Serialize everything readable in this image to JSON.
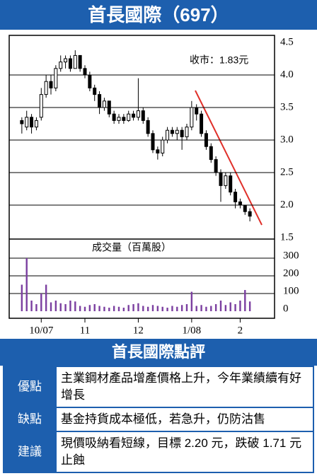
{
  "chart_data": {
    "type": "candlestick",
    "title": "首長國際（697）",
    "annotation": "收市：1.83元",
    "volume_label": "成交量（百萬股）",
    "xlim": [
      -1,
      48
    ],
    "xticks": [
      {
        "value": 4,
        "label": "10/07"
      },
      {
        "value": 13,
        "label": "11"
      },
      {
        "value": 24,
        "label": "12"
      },
      {
        "value": 35,
        "label": "1/08"
      },
      {
        "value": 45,
        "label": "2"
      }
    ],
    "ylim": [
      1.5,
      4.5
    ],
    "yticks": [
      1.5,
      {
        "value": 2,
        "label": "2.0"
      },
      2.5,
      {
        "value": 3,
        "label": "3.0"
      },
      3.5,
      {
        "value": 4,
        "label": "4.0"
      },
      4.5
    ],
    "y2lim": [
      0,
      400
    ],
    "y2ticks": [
      0,
      100,
      200,
      300
    ],
    "candle_color": "#000000",
    "volume_color": "#7b3fa0",
    "ohlc": [
      [
        3.3,
        3.35,
        3.1,
        3.25
      ],
      [
        3.2,
        3.45,
        3.15,
        3.35
      ],
      [
        3.35,
        3.4,
        3.1,
        3.2
      ],
      [
        3.2,
        3.35,
        3.15,
        3.3
      ],
      [
        3.35,
        3.8,
        3.3,
        3.7
      ],
      [
        3.7,
        4.0,
        3.65,
        3.9
      ],
      [
        3.9,
        4.0,
        3.7,
        3.8
      ],
      [
        3.8,
        4.15,
        3.75,
        4.1
      ],
      [
        4.1,
        4.3,
        4.05,
        4.2
      ],
      [
        4.2,
        4.3,
        4.1,
        4.25
      ],
      [
        4.25,
        4.3,
        4.05,
        4.1
      ],
      [
        4.1,
        4.38,
        4.1,
        4.3
      ],
      [
        4.3,
        4.3,
        4.05,
        4.1
      ],
      [
        4.1,
        4.15,
        3.95,
        4.0
      ],
      [
        4.0,
        4.05,
        3.75,
        3.8
      ],
      [
        3.8,
        3.85,
        3.6,
        3.7
      ],
      [
        3.7,
        3.75,
        3.4,
        3.5
      ],
      [
        3.5,
        3.65,
        3.45,
        3.6
      ],
      [
        3.6,
        3.6,
        3.35,
        3.4
      ],
      [
        3.4,
        3.45,
        3.25,
        3.3
      ],
      [
        3.3,
        3.4,
        3.25,
        3.35
      ],
      [
        3.35,
        3.4,
        3.25,
        3.3
      ],
      [
        3.3,
        3.45,
        3.28,
        3.4
      ],
      [
        3.4,
        3.45,
        3.3,
        3.35
      ],
      [
        3.35,
        3.95,
        3.3,
        3.45
      ],
      [
        3.45,
        3.5,
        3.25,
        3.3
      ],
      [
        3.3,
        3.35,
        3.05,
        3.1
      ],
      [
        3.1,
        3.15,
        2.8,
        2.85
      ],
      [
        2.85,
        2.9,
        2.7,
        2.8
      ],
      [
        2.8,
        3.05,
        2.75,
        3.0
      ],
      [
        3.0,
        3.2,
        2.95,
        3.15
      ],
      [
        3.15,
        3.2,
        3.05,
        3.1
      ],
      [
        3.1,
        3.2,
        3.0,
        3.15
      ],
      [
        3.15,
        3.2,
        2.85,
        3.05
      ],
      [
        3.05,
        3.25,
        3.0,
        3.2
      ],
      [
        3.2,
        3.6,
        3.15,
        3.5
      ],
      [
        3.5,
        3.55,
        3.3,
        3.4
      ],
      [
        3.4,
        3.45,
        3.05,
        3.1
      ],
      [
        3.1,
        3.15,
        2.85,
        2.9
      ],
      [
        2.9,
        2.95,
        2.65,
        2.7
      ],
      [
        2.7,
        2.75,
        2.45,
        2.5
      ],
      [
        2.5,
        2.55,
        2.05,
        2.3
      ],
      [
        2.3,
        2.5,
        2.25,
        2.45
      ],
      [
        2.45,
        2.5,
        2.15,
        2.2
      ],
      [
        2.2,
        2.25,
        1.95,
        2.05
      ],
      [
        2.05,
        2.1,
        1.95,
        2.0
      ],
      [
        2.0,
        2.0,
        1.85,
        1.9
      ],
      [
        1.9,
        1.95,
        1.75,
        1.83
      ]
    ],
    "volume": [
      150,
      300,
      60,
      40,
      100,
      150,
      50,
      60,
      45,
      40,
      60,
      55,
      30,
      25,
      35,
      40,
      30,
      25,
      20,
      30,
      25,
      20,
      35,
      40,
      45,
      30,
      25,
      35,
      30,
      25,
      20,
      30,
      25,
      35,
      40,
      110,
      30,
      35,
      25,
      30,
      40,
      60,
      35,
      50,
      40,
      60,
      120,
      55
    ]
  },
  "review": {
    "title": "首長國際點評",
    "rows": [
      {
        "label": "優點",
        "text": "主業鋼材產品增產價格上升，今年業績續有好增長"
      },
      {
        "label": "缺點",
        "text": "基金持貨成本極低，若急升，仍防沽售"
      },
      {
        "label": "建議",
        "text": "現價吸納看短線，目標 2.20 元，跌破 1.71 元止蝕"
      }
    ]
  }
}
